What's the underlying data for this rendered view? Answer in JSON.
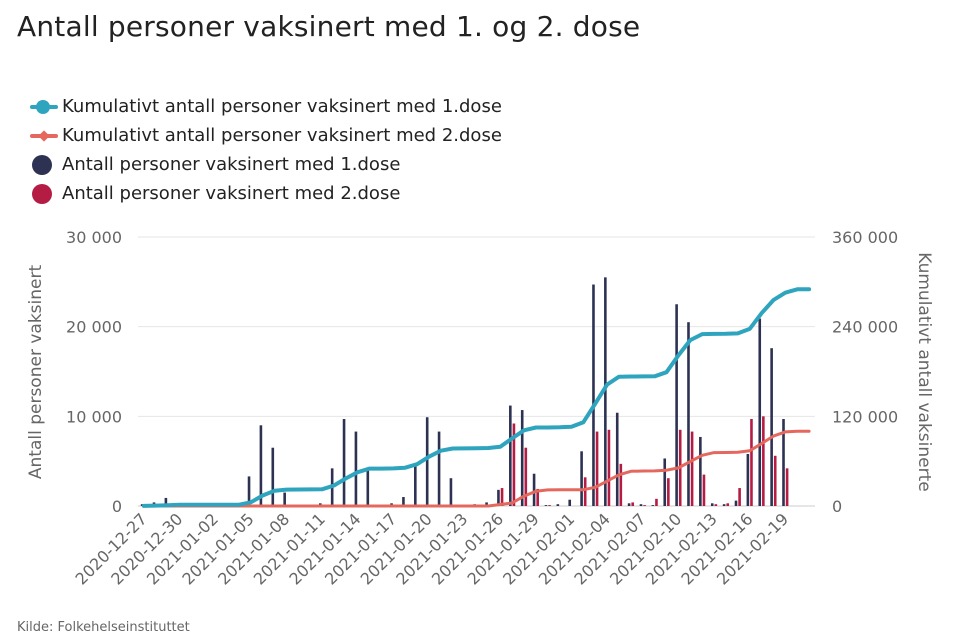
{
  "chart_data": {
    "type": "bar",
    "title": "Antall personer vaksinert med 1. og 2. dose",
    "source": "Kilde: Folkehelseinstituttet",
    "ylabel_left": "Antall personer vaksinert",
    "ylabel_right": "Kumulativt antall vaksinerte",
    "ylim_left": [
      0,
      30000
    ],
    "ylim_right": [
      0,
      360000
    ],
    "yticks_left": [
      "0",
      "10 000",
      "20 000",
      "30 000"
    ],
    "yticks_right": [
      "0",
      "120 000",
      "240 000",
      "360 000"
    ],
    "legend_position": "top-left",
    "grid": true,
    "x_tick_labels": [
      "2020-12-27",
      "2020-12-30",
      "2021-01-02",
      "2021-01-05",
      "2021-01-08",
      "2021-01-11",
      "2021-01-14",
      "2021-01-17",
      "2021-01-20",
      "2021-01-23",
      "2021-01-26",
      "2021-01-29",
      "2021-02-01",
      "2021-02-04",
      "2021-02-07",
      "2021-02-10",
      "2021-02-13",
      "2021-02-16",
      "2021-02-19"
    ],
    "dates": [
      "2020-12-27",
      "2020-12-28",
      "2020-12-29",
      "2020-12-30",
      "2020-12-31",
      "2021-01-01",
      "2021-01-02",
      "2021-01-03",
      "2021-01-04",
      "2021-01-05",
      "2021-01-06",
      "2021-01-07",
      "2021-01-08",
      "2021-01-09",
      "2021-01-10",
      "2021-01-11",
      "2021-01-12",
      "2021-01-13",
      "2021-01-14",
      "2021-01-15",
      "2021-01-16",
      "2021-01-17",
      "2021-01-18",
      "2021-01-19",
      "2021-01-20",
      "2021-01-21",
      "2021-01-22",
      "2021-01-23",
      "2021-01-24",
      "2021-01-25",
      "2021-01-26",
      "2021-01-27",
      "2021-01-28",
      "2021-01-29",
      "2021-01-30",
      "2021-01-31",
      "2021-02-01",
      "2021-02-02",
      "2021-02-03",
      "2021-02-04",
      "2021-02-05",
      "2021-02-06",
      "2021-02-07",
      "2021-02-08",
      "2021-02-09",
      "2021-02-10",
      "2021-02-11",
      "2021-02-12",
      "2021-02-13",
      "2021-02-14",
      "2021-02-15",
      "2021-02-16",
      "2021-02-17",
      "2021-02-18",
      "2021-02-19",
      "2021-02-20",
      "2021-02-21"
    ],
    "series": [
      {
        "name": "Kumulativt antall personer vaksinert med 1.dose",
        "kind": "line",
        "axis": "right",
        "color": "#2fa4bf",
        "values": [
          200,
          600,
          1100,
          1600,
          1700,
          1700,
          1700,
          1700,
          1700,
          5000,
          14000,
          20500,
          22000,
          22100,
          22200,
          22400,
          27500,
          37000,
          45200,
          50000,
          50100,
          50300,
          51300,
          56000,
          66000,
          74000,
          77000,
          77100,
          77200,
          77600,
          79400,
          90500,
          101300,
          105000,
          105100,
          105300,
          106000,
          112200,
          137000,
          162500,
          173000,
          173300,
          173500,
          173600,
          179000,
          201500,
          222000,
          230000,
          230300,
          230500,
          231000,
          237000,
          258000,
          275600,
          285400,
          290000,
          290000
        ]
      },
      {
        "name": "Kumulativt antall personer vaksinert med 2.dose",
        "kind": "line",
        "axis": "right",
        "color": "#e5685e",
        "values": [
          0,
          0,
          0,
          0,
          0,
          0,
          0,
          0,
          0,
          0,
          0,
          0,
          0,
          0,
          0,
          0,
          0,
          0,
          0,
          0,
          0,
          0,
          0,
          0,
          0,
          0,
          0,
          0,
          0,
          0,
          2000,
          4000,
          13200,
          19700,
          21600,
          21700,
          21700,
          21800,
          25000,
          33300,
          41800,
          46500,
          46900,
          47000,
          47900,
          51000,
          59500,
          67800,
          71400,
          71600,
          71900,
          73900,
          83600,
          93600,
          99200,
          100000,
          100000
        ]
      },
      {
        "name": "Antall personer vaksinert med 1.dose",
        "kind": "bar",
        "axis": "left",
        "color": "#2d3253",
        "values": [
          200,
          400,
          900,
          300,
          50,
          30,
          30,
          30,
          100,
          3300,
          9000,
          6500,
          1500,
          100,
          150,
          300,
          4200,
          9700,
          8300,
          4300,
          100,
          300,
          1000,
          4600,
          9900,
          8300,
          3100,
          100,
          200,
          400,
          1800,
          11200,
          10700,
          3600,
          100,
          200,
          700,
          6100,
          24700,
          25500,
          10400,
          300,
          200,
          100,
          5300,
          22500,
          20500,
          7700,
          300,
          200,
          600,
          5800,
          20900,
          17600,
          9700,
          0,
          0
        ]
      },
      {
        "name": "Antall personer vaksinert med 2.dose",
        "kind": "bar",
        "axis": "left",
        "color": "#b51c44",
        "values": [
          0,
          0,
          0,
          0,
          0,
          0,
          0,
          0,
          0,
          0,
          0,
          0,
          0,
          0,
          0,
          0,
          0,
          0,
          0,
          0,
          0,
          0,
          0,
          0,
          0,
          0,
          0,
          0,
          0,
          0,
          2000,
          9200,
          6500,
          1900,
          100,
          0,
          0,
          3200,
          8300,
          8500,
          4700,
          400,
          100,
          800,
          3100,
          8500,
          8300,
          3500,
          200,
          300,
          2000,
          9700,
          10000,
          5600,
          4200,
          0,
          0
        ]
      }
    ]
  }
}
